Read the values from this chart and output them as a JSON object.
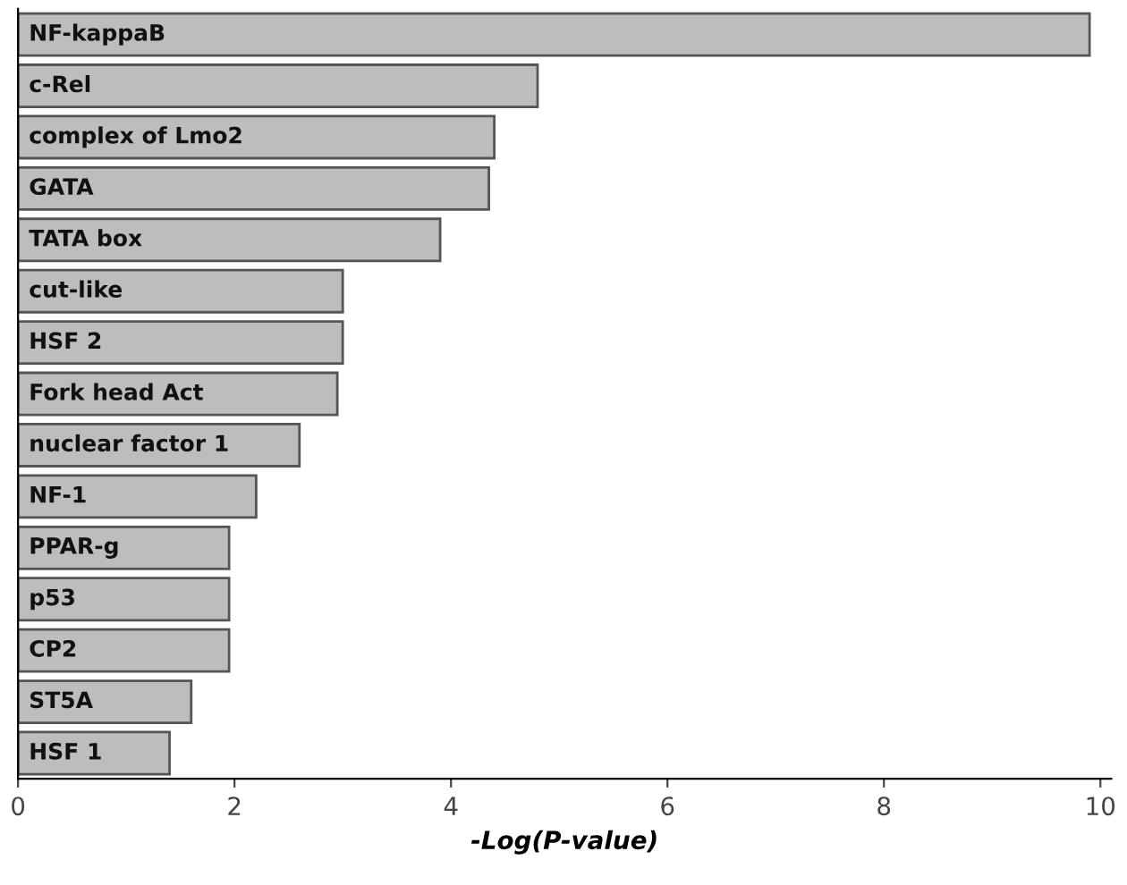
{
  "chart_data": {
    "type": "bar",
    "orientation": "horizontal",
    "xlabel": "-Log(P-value)",
    "categories": [
      "NF-kappaB",
      "c-Rel",
      "complex of Lmo2",
      "GATA",
      "TATA box",
      "cut-like",
      "HSF 2",
      "Fork head Act",
      "nuclear factor 1",
      "NF-1",
      "PPAR-g",
      "p53",
      "CP2",
      "ST5A",
      "HSF 1"
    ],
    "values": [
      9.9,
      4.8,
      4.4,
      4.35,
      3.9,
      3.0,
      3.0,
      2.95,
      2.6,
      2.2,
      1.95,
      1.95,
      1.95,
      1.6,
      1.4
    ],
    "color": "#bdbdbd",
    "xlim": [
      0,
      10.1
    ],
    "xticks": [
      0,
      2,
      4,
      6,
      8,
      10
    ],
    "tick_labels": "x",
    "grid": false,
    "legend": false
  }
}
